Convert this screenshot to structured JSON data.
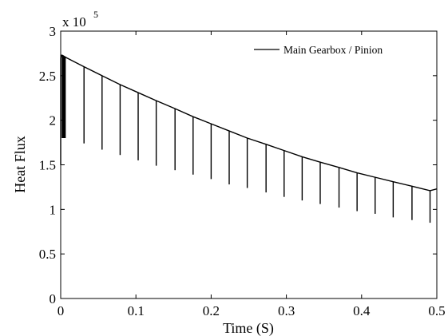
{
  "chart_data": {
    "type": "line",
    "xlabel": "Time (S)",
    "ylabel": "Heat Flux",
    "y_multiplier_base": "x 10",
    "y_multiplier_exp": "5",
    "xlim": [
      0,
      0.5
    ],
    "ylim": [
      0,
      300000
    ],
    "x_ticks": [
      0,
      0.1,
      0.2,
      0.3,
      0.4,
      0.5
    ],
    "x_tick_labels": [
      "0",
      "0.1",
      "0.2",
      "0.3",
      "0.4",
      "0.5"
    ],
    "y_ticks": [
      0,
      50000,
      100000,
      150000,
      200000,
      250000,
      300000
    ],
    "y_tick_labels": [
      "0",
      "0.5",
      "1",
      "1.5",
      "2",
      "2.5",
      "3"
    ],
    "grid": false,
    "legend_position": "top-right",
    "series": [
      {
        "name": "Main Gearbox / Pinion",
        "color": "#000000",
        "x": [
          0,
          0.001,
          0.002,
          0.003,
          0.004,
          0.005,
          0.006,
          0.008,
          0.031,
          0.055,
          0.079,
          0.103,
          0.127,
          0.152,
          0.176,
          0.2,
          0.224,
          0.248,
          0.273,
          0.297,
          0.321,
          0.345,
          0.37,
          0.394,
          0.418,
          0.442,
          0.467,
          0.491,
          0.5
        ],
        "y": [
          270000,
          273000,
          273000,
          272500,
          272000,
          271500,
          271000,
          270000,
          260000,
          250000,
          240000,
          231000,
          222000,
          213000,
          204000,
          196000,
          188000,
          180000,
          173000,
          166000,
          159000,
          153000,
          147000,
          141000,
          136000,
          131000,
          126000,
          121000,
          123000
        ],
        "spikes": [
          {
            "x": 0.002,
            "min": 180000
          },
          {
            "x": 0.003,
            "min": 180000
          },
          {
            "x": 0.004,
            "min": 180000
          },
          {
            "x": 0.005,
            "min": 180000
          },
          {
            "x": 0.006,
            "min": 180000
          },
          {
            "x": 0.031,
            "min": 174000
          },
          {
            "x": 0.055,
            "min": 167000
          },
          {
            "x": 0.079,
            "min": 161000
          },
          {
            "x": 0.103,
            "min": 155000
          },
          {
            "x": 0.127,
            "min": 149000
          },
          {
            "x": 0.152,
            "min": 144000
          },
          {
            "x": 0.176,
            "min": 139000
          },
          {
            "x": 0.2,
            "min": 134000
          },
          {
            "x": 0.224,
            "min": 128000
          },
          {
            "x": 0.248,
            "min": 124000
          },
          {
            "x": 0.273,
            "min": 119000
          },
          {
            "x": 0.297,
            "min": 114000
          },
          {
            "x": 0.321,
            "min": 110000
          },
          {
            "x": 0.345,
            "min": 106000
          },
          {
            "x": 0.37,
            "min": 102000
          },
          {
            "x": 0.394,
            "min": 98000
          },
          {
            "x": 0.418,
            "min": 95000
          },
          {
            "x": 0.442,
            "min": 91000
          },
          {
            "x": 0.467,
            "min": 88000
          },
          {
            "x": 0.491,
            "min": 85000
          }
        ]
      }
    ]
  }
}
